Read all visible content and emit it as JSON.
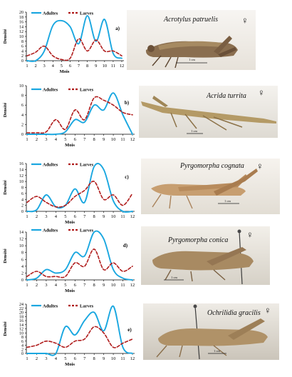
{
  "chart_data": [
    {
      "type": "line",
      "panel_label": "a)",
      "species": "Acrotylus patruelis",
      "sex_symbol": "♀",
      "scale_label": "1 cm",
      "xlabel": "Mois",
      "ylabel": "Densité",
      "x": [
        1,
        2,
        3,
        4,
        5,
        6,
        7,
        8,
        9,
        10,
        11,
        12
      ],
      "ylim": [
        0,
        20
      ],
      "yticks": [
        0,
        2,
        4,
        6,
        8,
        10,
        12,
        14,
        16,
        18,
        20
      ],
      "series": [
        {
          "name": "Adultes",
          "style": "solid",
          "color": "#1aa7e0",
          "values": [
            0,
            0,
            4,
            14.5,
            16.5,
            14,
            7,
            18.5,
            8,
            17,
            3,
            1
          ]
        },
        {
          "name": "Larves",
          "style": "dashed",
          "color": "#b01c1c",
          "values": [
            2,
            3.5,
            6,
            2,
            0.5,
            1,
            9,
            4,
            8.5,
            4,
            4,
            2
          ]
        }
      ]
    },
    {
      "type": "line",
      "panel_label": "b)",
      "species": "Acrida turrita",
      "sex_symbol": "♀",
      "scale_label": "1 cm",
      "xlabel": "Mois",
      "ylabel": "Densité",
      "x": [
        1,
        2,
        3,
        4,
        5,
        6,
        7,
        8,
        9,
        10,
        11,
        12
      ],
      "ylim": [
        0,
        10
      ],
      "yticks": [
        0,
        2,
        4,
        6,
        8,
        10
      ],
      "series": [
        {
          "name": "Adultes",
          "style": "solid",
          "color": "#1aa7e0",
          "values": [
            0,
            0,
            0,
            0,
            0.5,
            3,
            2.5,
            6,
            5,
            8.5,
            4,
            0
          ]
        },
        {
          "name": "Larves",
          "style": "dashed",
          "color": "#b01c1c",
          "values": [
            0.3,
            0.3,
            0.5,
            3,
            1,
            5,
            3,
            7.5,
            7,
            6,
            4.5,
            4
          ]
        }
      ]
    },
    {
      "type": "line",
      "panel_label": "c)",
      "species": "Pyrgomorpha cognata",
      "sex_symbol": "♀",
      "scale_label": "1 cm",
      "xlabel": "Mois",
      "ylabel": "Densité",
      "x": [
        1,
        2,
        3,
        4,
        5,
        6,
        7,
        8,
        9,
        10,
        11,
        12
      ],
      "ylim": [
        0,
        16
      ],
      "yticks": [
        0,
        2,
        4,
        6,
        8,
        10,
        12,
        14,
        16
      ],
      "series": [
        {
          "name": "Adultes",
          "style": "solid",
          "color": "#1aa7e0",
          "values": [
            0,
            0.5,
            5.5,
            1.5,
            2,
            7.5,
            3,
            15,
            14,
            3.5,
            0,
            0
          ]
        },
        {
          "name": "Larves",
          "style": "dashed",
          "color": "#b01c1c",
          "values": [
            3,
            5,
            3,
            1.5,
            2,
            5,
            7,
            10,
            4,
            5.5,
            2,
            6
          ]
        }
      ]
    },
    {
      "type": "line",
      "panel_label": "d)",
      "species": "Pyrgomorpha conica",
      "sex_symbol": "♀",
      "scale_label": "1 cm",
      "xlabel": "Mois",
      "ylabel": "Densité",
      "x": [
        1,
        2,
        3,
        4,
        5,
        6,
        7,
        8,
        9,
        10,
        11,
        12
      ],
      "ylim": [
        0,
        14
      ],
      "yticks": [
        0,
        2,
        4,
        6,
        8,
        10,
        12,
        14
      ],
      "series": [
        {
          "name": "Adultes",
          "style": "solid",
          "color": "#1aa7e0",
          "values": [
            0,
            0.5,
            3,
            2,
            3,
            8,
            7,
            14,
            12,
            3,
            0.5,
            0
          ]
        },
        {
          "name": "Larves",
          "style": "dashed",
          "color": "#b01c1c",
          "values": [
            1,
            2.5,
            1,
            1,
            1,
            5,
            4,
            9,
            3,
            5,
            2.5,
            4
          ]
        }
      ]
    },
    {
      "type": "line",
      "panel_label": "e)",
      "species": "Ochrilidia gracilis",
      "sex_symbol": "♀",
      "scale_label": "1 cm",
      "xlabel": "Mois",
      "ylabel": "Densité",
      "x": [
        1,
        2,
        3,
        4,
        5,
        6,
        7,
        8,
        9,
        10,
        11,
        12
      ],
      "ylim": [
        0,
        24
      ],
      "yticks": [
        0,
        2,
        4,
        6,
        8,
        10,
        12,
        14,
        16,
        18,
        20,
        22,
        24
      ],
      "series": [
        {
          "name": "Adultes",
          "style": "solid",
          "color": "#1aa7e0",
          "values": [
            0,
            0,
            0,
            0,
            13,
            9,
            16,
            20,
            11,
            23,
            3,
            0
          ]
        },
        {
          "name": "Larves",
          "style": "dashed",
          "color": "#b01c1c",
          "values": [
            3,
            4,
            6,
            5,
            3,
            6,
            7,
            13,
            10,
            3,
            5,
            7
          ]
        }
      ]
    }
  ]
}
